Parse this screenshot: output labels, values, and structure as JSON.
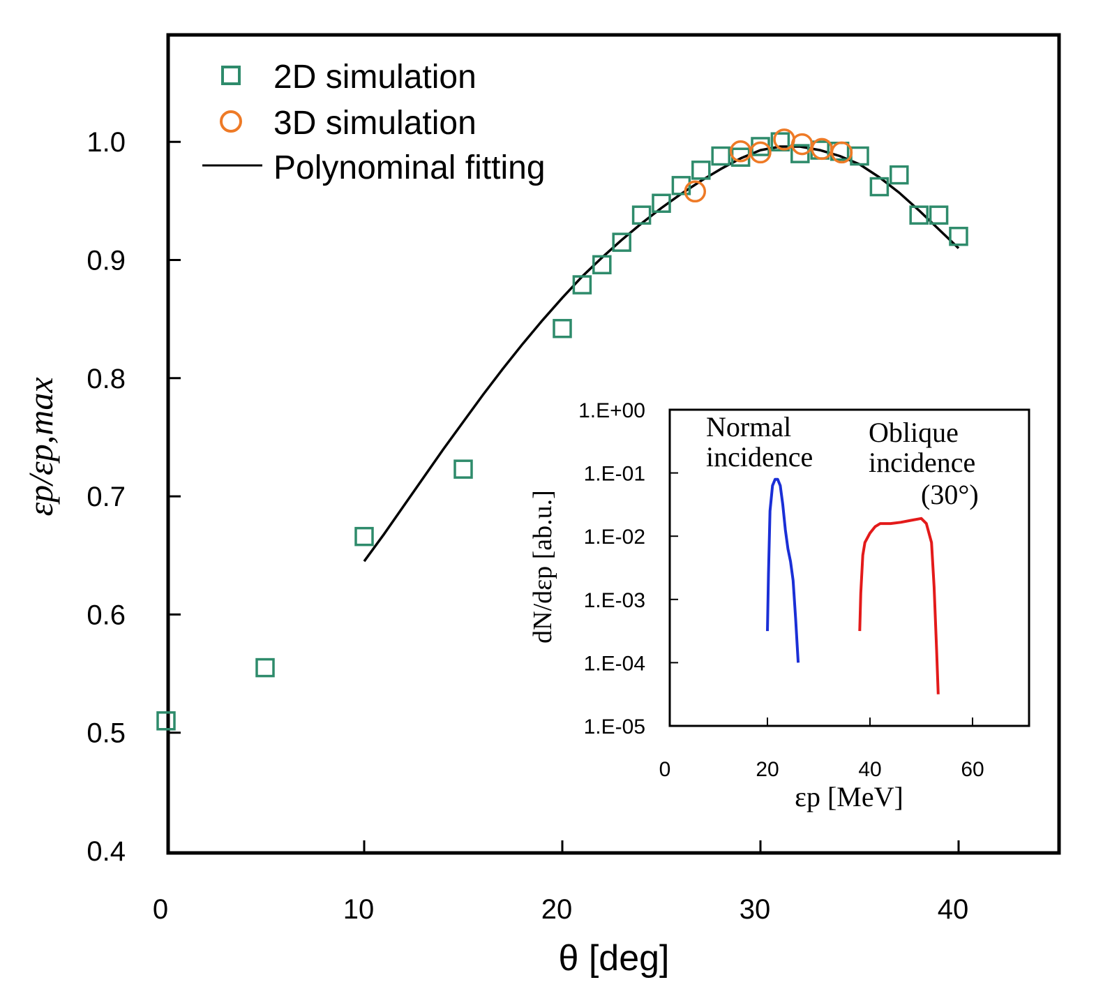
{
  "chart_data": [
    {
      "type": "scatter",
      "xlabel": "θ  [deg]",
      "ylabel": "εp/εp,max",
      "xlim": [
        0,
        45
      ],
      "ylim": [
        0.4,
        1.1
      ],
      "xticks": [
        "0",
        "10",
        "20",
        "30",
        "40"
      ],
      "yticks": [
        "0.4",
        "0.5",
        "0.6",
        "0.7",
        "0.8",
        "0.9",
        "1.0"
      ],
      "colors": {
        "sim2d": "#2e8b6b",
        "sim3d": "#ee7a26",
        "fit": "#000000"
      },
      "legend": [
        {
          "label": "2D simulation"
        },
        {
          "label": "3D simulation"
        },
        {
          "label": "Polynominal fitting"
        }
      ],
      "series": [
        {
          "name": "2D simulation",
          "marker": "square",
          "x": [
            0,
            5,
            10,
            15,
            20,
            21,
            22,
            23,
            24,
            25,
            26,
            27,
            28,
            29,
            30,
            31,
            32,
            33,
            34,
            35,
            36,
            37,
            38,
            39,
            40
          ],
          "y": [
            0.51,
            0.555,
            0.666,
            0.723,
            0.842,
            0.879,
            0.896,
            0.915,
            0.938,
            0.948,
            0.963,
            0.976,
            0.988,
            0.987,
            0.996,
            1.0,
            0.99,
            0.993,
            0.992,
            0.988,
            0.962,
            0.972,
            0.938,
            0.938,
            0.92
          ]
        },
        {
          "name": "3D simulation",
          "marker": "circle",
          "x": [
            26.7,
            29,
            30,
            31.2,
            32.1,
            33.1,
            34.1
          ],
          "y": [
            0.958,
            0.992,
            0.991,
            1.002,
            0.998,
            0.994,
            0.991
          ]
        },
        {
          "name": "Polynominal fitting",
          "marker": "line",
          "x": [
            10,
            11,
            12,
            13,
            14,
            15,
            16,
            17,
            18,
            19,
            20,
            21,
            22,
            23,
            24,
            25,
            26,
            27,
            28,
            29,
            30,
            31,
            32,
            33,
            34,
            35,
            36,
            37,
            38,
            39,
            40
          ],
          "y": [
            0.645,
            0.668,
            0.692,
            0.716,
            0.74,
            0.763,
            0.786,
            0.808,
            0.829,
            0.849,
            0.868,
            0.886,
            0.902,
            0.917,
            0.931,
            0.944,
            0.956,
            0.967,
            0.977,
            0.986,
            0.993,
            0.996,
            0.996,
            0.993,
            0.988,
            0.981,
            0.97,
            0.957,
            0.942,
            0.926,
            0.91
          ]
        }
      ]
    },
    {
      "type": "line",
      "xlabel": "εp [MeV]",
      "ylabel": "dN/dεp [ab.u.]",
      "xlim": [
        0,
        70
      ],
      "ylim_log10": [
        -5,
        0
      ],
      "xticks": [
        "0",
        "20",
        "40",
        "60"
      ],
      "yticks": [
        "1.E+00",
        "1.E-01",
        "1.E-02",
        "1.E-03",
        "1.E-04",
        "1.E-05"
      ],
      "colors": {
        "normal": "#1a2fd6",
        "oblique": "#e31a1a"
      },
      "annotations": {
        "normal_line1": "Normal",
        "normal_line2": "incidence",
        "oblique_line1": "Oblique",
        "oblique_line2": "incidence",
        "oblique_line3": "(30°)"
      },
      "series": [
        {
          "name": "Normal incidence",
          "x": [
            20,
            20.2,
            20.5,
            21,
            21.5,
            22,
            22.5,
            23,
            23.5,
            24,
            24.5,
            25,
            25.5,
            26
          ],
          "log10y": [
            -3.5,
            -2.6,
            -1.6,
            -1.2,
            -1.1,
            -1.1,
            -1.2,
            -1.5,
            -1.9,
            -2.2,
            -2.4,
            -2.7,
            -3.3,
            -4.0
          ]
        },
        {
          "name": "Oblique incidence (30°)",
          "x": [
            38,
            38.2,
            38.6,
            39,
            40,
            41,
            42,
            44,
            46,
            48,
            50,
            51,
            52,
            52.5,
            53,
            53.3
          ],
          "log10y": [
            -3.5,
            -2.9,
            -2.3,
            -2.1,
            -1.95,
            -1.85,
            -1.8,
            -1.8,
            -1.78,
            -1.75,
            -1.72,
            -1.8,
            -2.1,
            -2.8,
            -3.8,
            -4.5
          ]
        }
      ]
    }
  ]
}
